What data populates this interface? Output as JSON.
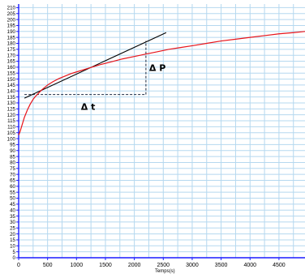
{
  "chart_data": {
    "type": "line",
    "title": "",
    "xlabel": "Temps(s)",
    "ylabel": "",
    "xlim": [
      0,
      4950
    ],
    "ylim": [
      0,
      213
    ],
    "x_ticks": [
      0,
      500,
      1000,
      1500,
      2000,
      2500,
      3000,
      3500,
      4000,
      4500
    ],
    "y_ticks": [
      0,
      5,
      10,
      15,
      20,
      25,
      30,
      35,
      40,
      45,
      50,
      55,
      60,
      65,
      70,
      75,
      80,
      85,
      90,
      95,
      100,
      105,
      110,
      115,
      120,
      125,
      130,
      135,
      140,
      145,
      150,
      155,
      160,
      165,
      170,
      175,
      180,
      185,
      190,
      195,
      200,
      205,
      210
    ],
    "grid": true,
    "colors": {
      "curve": "#e8141a",
      "tangent": "#000000",
      "axes": "#1a1aff",
      "grid": "#b5d8ef",
      "ticklabels": "#000000",
      "dashed": "#1c2a40"
    },
    "series": [
      {
        "x": [
          0,
          25,
          50,
          75,
          100,
          150,
          200,
          250,
          300,
          400,
          500,
          600,
          700,
          800,
          900,
          1000,
          1200,
          1400,
          1600,
          1800,
          2000,
          2200,
          2400,
          2600,
          2800,
          3000,
          3250,
          3500,
          3750,
          4000,
          4250,
          4500,
          4750,
          4950
        ],
        "y": [
          103,
          106,
          110,
          114,
          118,
          124,
          129,
          133,
          136,
          141,
          145,
          148,
          150.5,
          152.5,
          154.5,
          156,
          159,
          162,
          164.5,
          167,
          169,
          171,
          173,
          175,
          176.5,
          178,
          180,
          182,
          183.5,
          185,
          186.5,
          188,
          189,
          190
        ]
      }
    ],
    "tangent_line": {
      "x": [
        100,
        2550
      ],
      "y": [
        134,
        189
      ]
    },
    "delta_t": {
      "label": "Δ t",
      "x": [
        100,
        2200
      ],
      "y": 137
    },
    "delta_p": {
      "label": "Δ P",
      "x": 2200,
      "y": [
        137,
        182
      ]
    }
  }
}
